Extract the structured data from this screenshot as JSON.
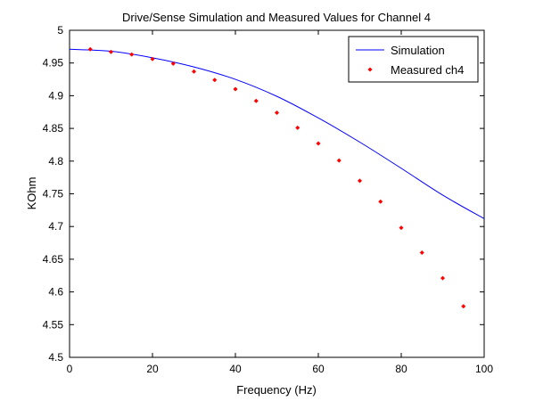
{
  "chart_data": {
    "type": "line",
    "title": "Drive/Sense Simulation and Measured Values for Channel 4",
    "xlabel": "Frequency (Hz)",
    "ylabel": "KOhm",
    "xlim": [
      0,
      100
    ],
    "ylim": [
      4.5,
      5
    ],
    "x_ticks": [
      0,
      20,
      40,
      60,
      80,
      100
    ],
    "y_ticks": [
      4.5,
      4.55,
      4.6,
      4.65,
      4.7,
      4.75,
      4.8,
      4.85,
      4.9,
      4.95,
      5
    ],
    "x_tick_labels": [
      "0",
      "20",
      "40",
      "60",
      "80",
      "100"
    ],
    "y_tick_labels": [
      "4.5",
      "4.55",
      "4.6",
      "4.65",
      "4.7",
      "4.75",
      "4.8",
      "4.85",
      "4.9",
      "4.95",
      "5"
    ],
    "grid": false,
    "legend_position": "top-right",
    "series": [
      {
        "name": "Simulation",
        "style": "line",
        "color": "#0000ff",
        "x": [
          0,
          10,
          20,
          30,
          40,
          50,
          60,
          70,
          80,
          90,
          100
        ],
        "y": [
          4.971,
          4.968,
          4.958,
          4.944,
          4.925,
          4.899,
          4.866,
          4.829,
          4.789,
          4.748,
          4.712
        ]
      },
      {
        "name": "Measured ch4",
        "style": "markers",
        "color": "#ff0000",
        "x": [
          5,
          10,
          15,
          20,
          25,
          30,
          35,
          40,
          45,
          50,
          55,
          60,
          65,
          70,
          75,
          80,
          85,
          90,
          95
        ],
        "y": [
          4.971,
          4.967,
          4.963,
          4.956,
          4.949,
          4.937,
          4.924,
          4.91,
          4.892,
          4.874,
          4.851,
          4.827,
          4.801,
          4.77,
          4.738,
          4.698,
          4.66,
          4.621,
          4.578
        ]
      }
    ]
  }
}
